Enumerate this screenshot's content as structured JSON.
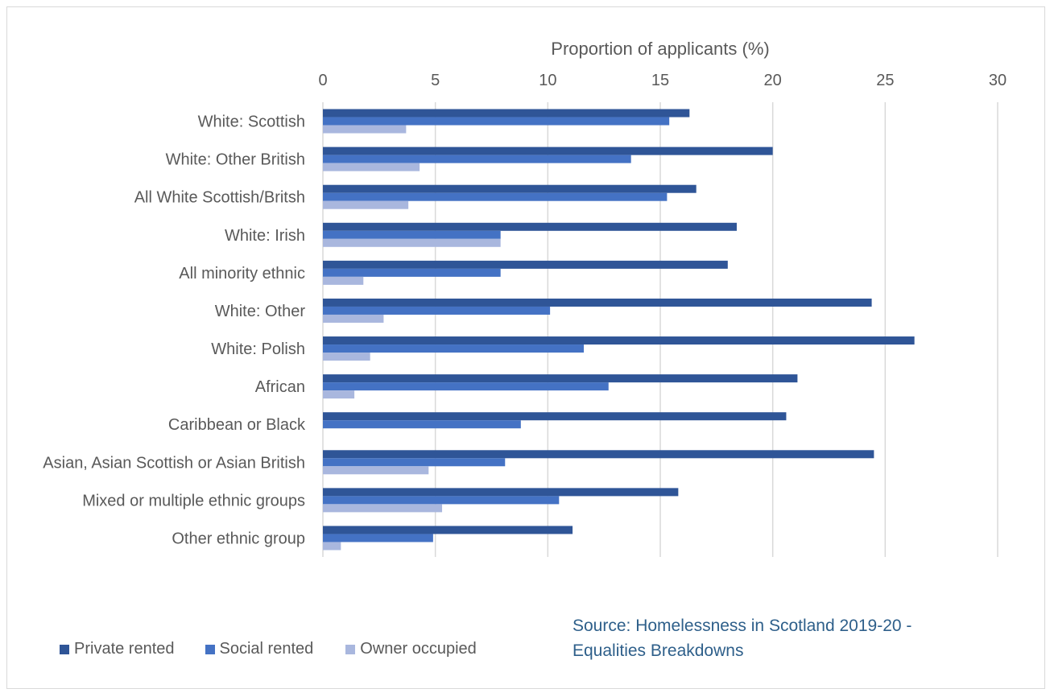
{
  "chart_data": {
    "type": "bar",
    "orientation": "horizontal",
    "xlabel": "Proportion of applicants (%)",
    "xlim": [
      0,
      30
    ],
    "xticks": [
      0,
      5,
      10,
      15,
      20,
      25,
      30
    ],
    "grid": true,
    "legend_position": "bottom-left",
    "categories": [
      "White: Scottish",
      "White: Other British",
      "All White Scottish/Britsh",
      "White: Irish",
      "All minority ethnic",
      "White: Other",
      "White: Polish",
      "African",
      "Caribbean or Black",
      "Asian, Asian Scottish or Asian British",
      "Mixed or multiple ethnic groups",
      "Other ethnic group"
    ],
    "series": [
      {
        "name": "Private rented",
        "color": "#2f5597",
        "values": [
          16.3,
          20.0,
          16.6,
          18.4,
          18.0,
          24.4,
          26.3,
          21.1,
          20.6,
          24.5,
          15.8,
          11.1
        ]
      },
      {
        "name": "Social rented",
        "color": "#4472c4",
        "values": [
          15.4,
          13.7,
          15.3,
          7.9,
          7.9,
          10.1,
          11.6,
          12.7,
          8.8,
          8.1,
          10.5,
          4.9
        ]
      },
      {
        "name": "Owner occupied",
        "color": "#a9b7de",
        "values": [
          3.7,
          4.3,
          3.8,
          7.9,
          1.8,
          2.7,
          2.1,
          1.4,
          0,
          4.7,
          5.3,
          0.8
        ]
      }
    ]
  },
  "source": {
    "line1": "Source: Homelessness in Scotland 2019-20 -",
    "line2": "Equalities Breakdowns"
  }
}
